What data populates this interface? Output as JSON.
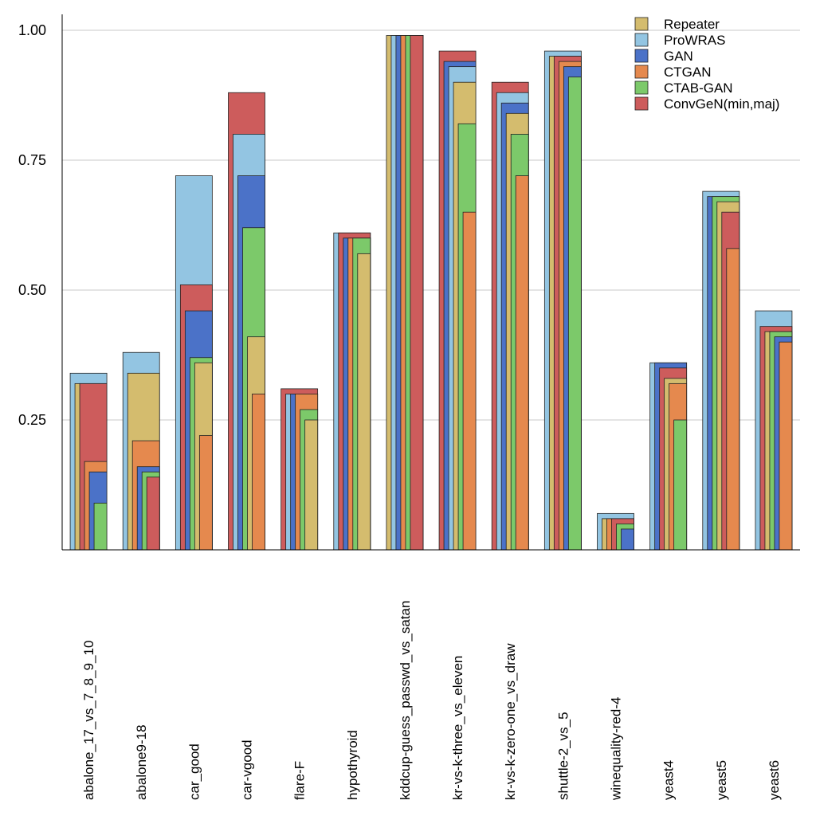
{
  "chart_data": {
    "type": "bar",
    "title": "",
    "xlabel": "",
    "ylabel": "",
    "ylim": [
      0,
      1.0
    ],
    "yticks": [
      "0.25",
      "0.50",
      "0.75",
      "1.00"
    ],
    "ytick_values": [
      0.25,
      0.5,
      0.75,
      1.0
    ],
    "grid": true,
    "legend_position": "top-right",
    "categories": [
      "abalone_17_vs_7_8_9_10",
      "abalone9-18",
      "car_good",
      "car-vgood",
      "flare-F",
      "hypothyroid",
      "kddcup-guess_passwd_vs_satan",
      "kr-vs-k-three_vs_eleven",
      "kr-vs-k-zero-one_vs_draw",
      "shuttle-2_vs_5",
      "winequality-red-4",
      "yeast4",
      "yeast5",
      "yeast6"
    ],
    "series": [
      {
        "name": "Repeater",
        "color": "#d4bc6e",
        "values": [
          0.32,
          0.34,
          0.36,
          0.41,
          0.25,
          0.57,
          0.99,
          0.9,
          0.84,
          0.95,
          0.06,
          0.33,
          0.67,
          0.42
        ]
      },
      {
        "name": "ProWRAS",
        "color": "#93c5e2",
        "values": [
          0.34,
          0.38,
          0.72,
          0.8,
          0.3,
          0.61,
          0.99,
          0.93,
          0.88,
          0.96,
          0.07,
          0.36,
          0.69,
          0.46
        ]
      },
      {
        "name": "GAN",
        "color": "#4b72c8",
        "values": [
          0.15,
          0.16,
          0.46,
          0.72,
          0.3,
          0.6,
          0.99,
          0.94,
          0.86,
          0.93,
          0.04,
          0.36,
          0.68,
          0.41
        ]
      },
      {
        "name": "CTGAN",
        "color": "#e5894e",
        "values": [
          0.17,
          0.21,
          0.22,
          0.3,
          0.3,
          0.6,
          0.99,
          0.65,
          0.72,
          0.94,
          0.06,
          0.32,
          0.58,
          0.4
        ]
      },
      {
        "name": "CTAB-GAN",
        "color": "#7cc96a",
        "values": [
          0.09,
          0.15,
          0.37,
          0.62,
          0.27,
          0.6,
          0.99,
          0.82,
          0.8,
          0.91,
          0.05,
          0.25,
          0.68,
          0.42
        ]
      },
      {
        "name": "ConvGeN(min,maj)",
        "color": "#cd5c5c",
        "values": [
          0.32,
          0.14,
          0.51,
          0.88,
          0.31,
          0.61,
          0.99,
          0.96,
          0.9,
          0.95,
          0.06,
          0.35,
          0.65,
          0.43
        ]
      }
    ]
  }
}
